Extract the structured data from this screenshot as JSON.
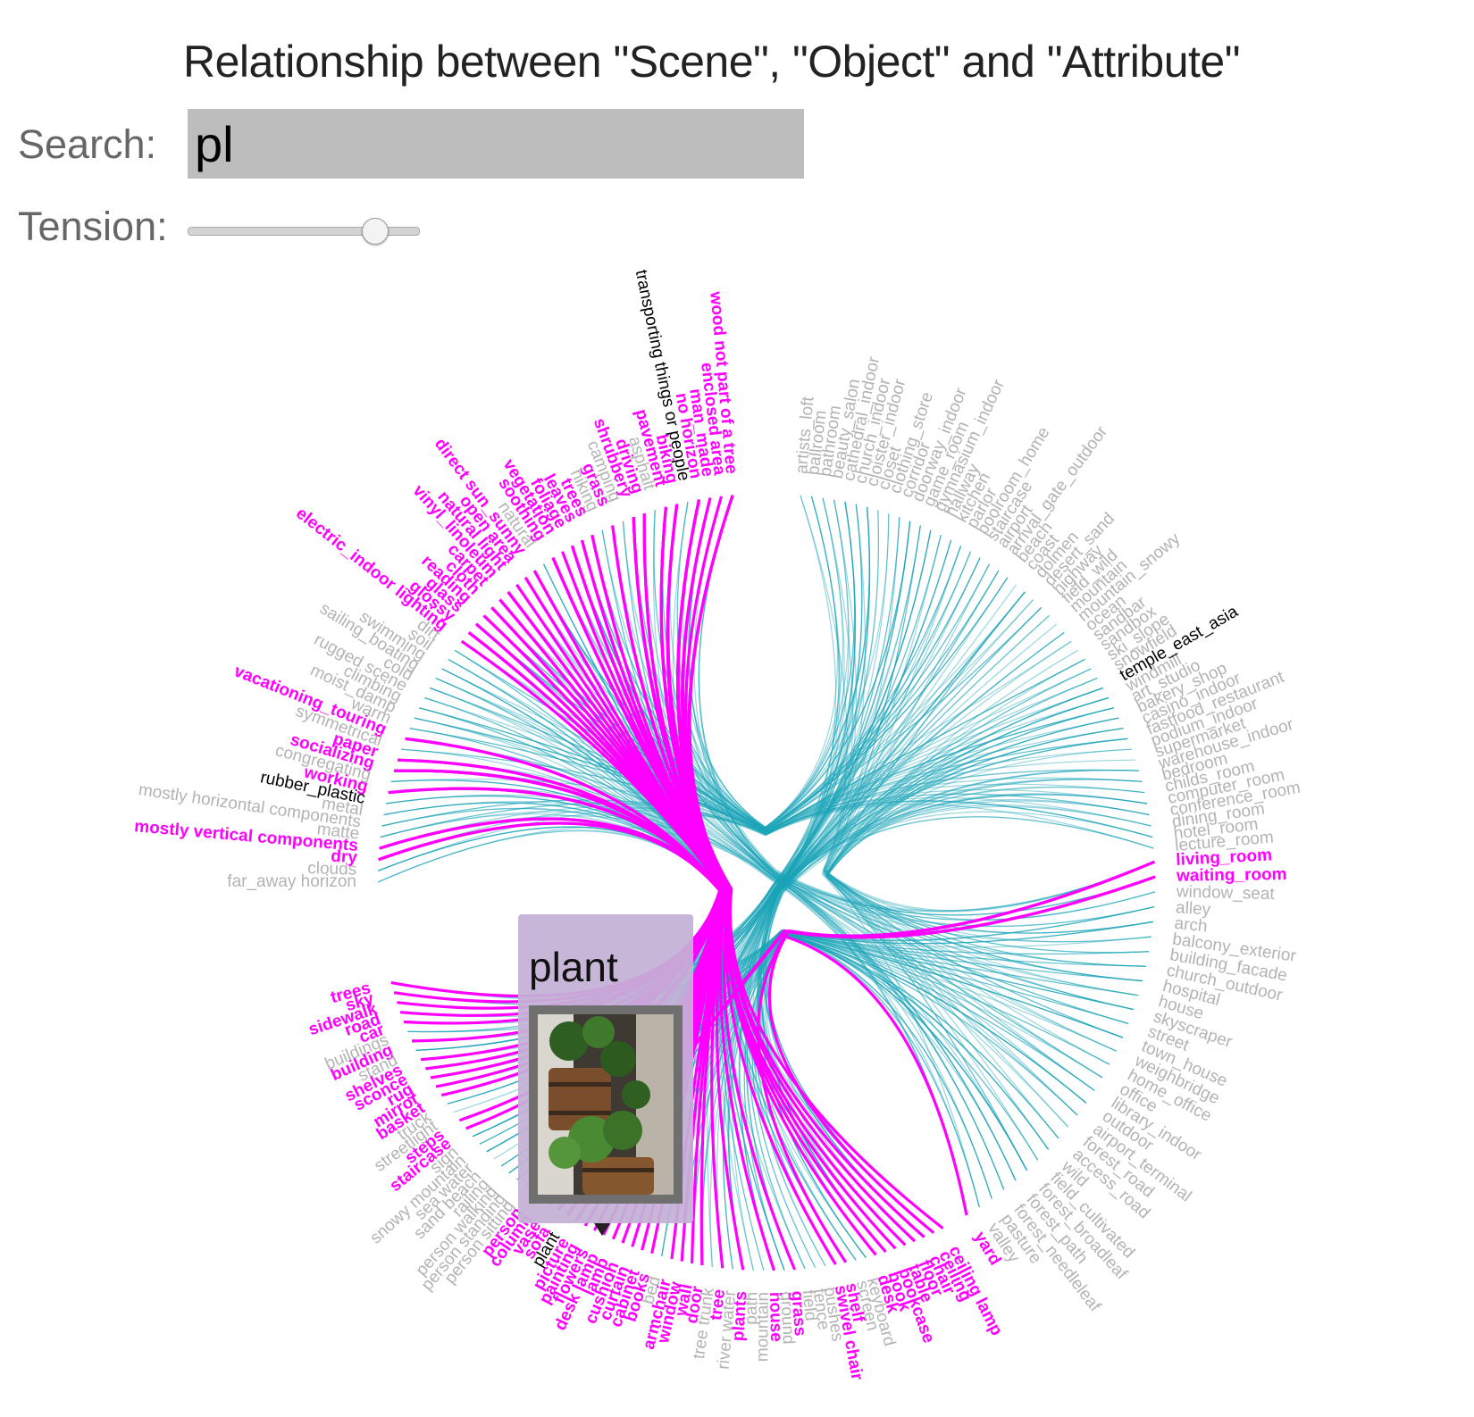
{
  "title": "Relationship between \"Scene\", \"Object\" and \"Attribute\"",
  "search": {
    "label": "Search:",
    "value": "pl"
  },
  "tension": {
    "label": "Tension:",
    "value": 0.85
  },
  "tooltip": {
    "title": "plant"
  },
  "colors": {
    "highlight": "#ff00ff",
    "link": "#1aa3b8",
    "muted": "#b3b3b3",
    "selected": "#000000"
  },
  "groups": [
    {
      "name": "attributes",
      "nodes": [
        {
          "label": "wood not part of a tree",
          "state": "highlight"
        },
        {
          "label": "enclosed area",
          "state": "highlight"
        },
        {
          "label": "man_made",
          "state": "highlight"
        },
        {
          "label": "no horizon",
          "state": "highlight"
        },
        {
          "label": "transporting things or people",
          "state": "selected"
        },
        {
          "label": "biking",
          "state": "highlight"
        },
        {
          "label": "pavement",
          "state": "highlight"
        },
        {
          "label": "asphalt",
          "state": "muted"
        },
        {
          "label": "driving",
          "state": "highlight"
        },
        {
          "label": "shrubbery",
          "state": "highlight"
        },
        {
          "label": "camping",
          "state": "muted"
        },
        {
          "label": "grass",
          "state": "highlight"
        },
        {
          "label": "hiking",
          "state": "muted"
        },
        {
          "label": "trees",
          "state": "highlight"
        },
        {
          "label": "leaves",
          "state": "highlight"
        },
        {
          "label": "foliage",
          "state": "highlight"
        },
        {
          "label": "vegetation",
          "state": "highlight"
        },
        {
          "label": "soothing",
          "state": "highlight"
        },
        {
          "label": "natural",
          "state": "muted"
        },
        {
          "label": "direct sun_sunny",
          "state": "highlight"
        },
        {
          "label": "open area",
          "state": "highlight"
        },
        {
          "label": "natural light",
          "state": "highlight"
        },
        {
          "label": "vinyl_linoleum",
          "state": "highlight"
        },
        {
          "label": "carpet",
          "state": "highlight"
        },
        {
          "label": "cloth",
          "state": "highlight"
        },
        {
          "label": "reading",
          "state": "highlight"
        },
        {
          "label": "glass",
          "state": "highlight"
        },
        {
          "label": "glossy",
          "state": "highlight"
        },
        {
          "label": "electric_indoor lighting",
          "state": "highlight"
        },
        {
          "label": "dirt",
          "state": "muted"
        },
        {
          "label": "soil",
          "state": "muted"
        },
        {
          "label": "swimming",
          "state": "muted"
        },
        {
          "label": "sailing_boating",
          "state": "muted"
        },
        {
          "label": "cold",
          "state": "muted"
        },
        {
          "label": "rugged scene",
          "state": "muted"
        },
        {
          "label": "climbing",
          "state": "muted"
        },
        {
          "label": "moist_damp",
          "state": "muted"
        },
        {
          "label": "warm",
          "state": "muted"
        },
        {
          "label": "vacationing_touring",
          "state": "highlight"
        },
        {
          "label": "symmetrical",
          "state": "muted"
        },
        {
          "label": "paper",
          "state": "highlight"
        },
        {
          "label": "socializing",
          "state": "highlight"
        },
        {
          "label": "congregating",
          "state": "muted"
        },
        {
          "label": "working",
          "state": "highlight"
        },
        {
          "label": "rubber_plastic",
          "state": "selected"
        },
        {
          "label": "metal",
          "state": "muted"
        },
        {
          "label": "mostly horizontal components",
          "state": "muted"
        },
        {
          "label": "matte",
          "state": "muted"
        },
        {
          "label": "mostly vertical components",
          "state": "highlight"
        },
        {
          "label": "dry",
          "state": "highlight"
        },
        {
          "label": "clouds",
          "state": "muted"
        },
        {
          "label": "far_away horizon",
          "state": "muted"
        }
      ]
    },
    {
      "name": "objects",
      "nodes": [
        {
          "label": "trees",
          "state": "highlight"
        },
        {
          "label": "sky",
          "state": "highlight"
        },
        {
          "label": "sidewalk",
          "state": "highlight"
        },
        {
          "label": "road",
          "state": "highlight"
        },
        {
          "label": "car",
          "state": "highlight"
        },
        {
          "label": "buildings",
          "state": "muted"
        },
        {
          "label": "building",
          "state": "highlight"
        },
        {
          "label": "stand",
          "state": "muted"
        },
        {
          "label": "shelves",
          "state": "highlight"
        },
        {
          "label": "sconce",
          "state": "highlight"
        },
        {
          "label": "rug",
          "state": "highlight"
        },
        {
          "label": "mirror",
          "state": "highlight"
        },
        {
          "label": "basket",
          "state": "highlight"
        },
        {
          "label": "truck",
          "state": "muted"
        },
        {
          "label": "streetlight",
          "state": "muted"
        },
        {
          "label": "steps",
          "state": "highlight"
        },
        {
          "label": "staircase",
          "state": "highlight"
        },
        {
          "label": "sign",
          "state": "muted"
        },
        {
          "label": "snowy mountain",
          "state": "muted"
        },
        {
          "label": "sea water",
          "state": "muted"
        },
        {
          "label": "sand beach",
          "state": "muted"
        },
        {
          "label": "railing",
          "state": "muted"
        },
        {
          "label": "person walking",
          "state": "muted"
        },
        {
          "label": "person standing",
          "state": "muted"
        },
        {
          "label": "person sitting",
          "state": "muted"
        },
        {
          "label": "person",
          "state": "highlight"
        },
        {
          "label": "column",
          "state": "highlight"
        },
        {
          "label": "vase",
          "state": "highlight"
        },
        {
          "label": "sofa",
          "state": "highlight"
        },
        {
          "label": "plant",
          "state": "selected"
        },
        {
          "label": "picture",
          "state": "highlight"
        },
        {
          "label": "painting",
          "state": "highlight"
        },
        {
          "label": "flowers",
          "state": "highlight"
        },
        {
          "label": "desk lamp",
          "state": "highlight"
        },
        {
          "label": "lamp",
          "state": "highlight"
        },
        {
          "label": "cushion",
          "state": "highlight"
        },
        {
          "label": "curtain",
          "state": "highlight"
        },
        {
          "label": "cabinet",
          "state": "highlight"
        },
        {
          "label": "books",
          "state": "highlight"
        },
        {
          "label": "bed",
          "state": "muted"
        },
        {
          "label": "armchair",
          "state": "highlight"
        },
        {
          "label": "window",
          "state": "highlight"
        },
        {
          "label": "wall",
          "state": "highlight"
        },
        {
          "label": "door",
          "state": "highlight"
        },
        {
          "label": "tree trunk",
          "state": "muted"
        },
        {
          "label": "tree",
          "state": "highlight"
        },
        {
          "label": "river water",
          "state": "muted"
        },
        {
          "label": "plants",
          "state": "highlight"
        },
        {
          "label": "path",
          "state": "muted"
        },
        {
          "label": "mountain",
          "state": "muted"
        },
        {
          "label": "house",
          "state": "highlight"
        },
        {
          "label": "ground",
          "state": "muted"
        },
        {
          "label": "grass",
          "state": "highlight"
        },
        {
          "label": "field",
          "state": "muted"
        },
        {
          "label": "fence",
          "state": "muted"
        },
        {
          "label": "bushes",
          "state": "muted"
        },
        {
          "label": "swivel chair",
          "state": "highlight"
        },
        {
          "label": "shelf",
          "state": "highlight"
        },
        {
          "label": "screen",
          "state": "muted"
        },
        {
          "label": "keyboard",
          "state": "muted"
        },
        {
          "label": "desk",
          "state": "highlight"
        },
        {
          "label": "book",
          "state": "highlight"
        },
        {
          "label": "bookcase",
          "state": "highlight"
        },
        {
          "label": "table",
          "state": "highlight"
        },
        {
          "label": "floor",
          "state": "highlight"
        },
        {
          "label": "chair",
          "state": "highlight"
        },
        {
          "label": "ceiling",
          "state": "highlight"
        },
        {
          "label": "ceiling lamp",
          "state": "highlight"
        }
      ]
    },
    {
      "name": "scenes",
      "nodes": [
        {
          "label": "yard",
          "state": "highlight"
        },
        {
          "label": "valley",
          "state": "muted"
        },
        {
          "label": "pasture",
          "state": "muted"
        },
        {
          "label": "forest_needleleaf",
          "state": "muted"
        },
        {
          "label": "forest_path",
          "state": "muted"
        },
        {
          "label": "forest_broadleaf",
          "state": "muted"
        },
        {
          "label": "field_cultivated",
          "state": "muted"
        },
        {
          "label": "wild",
          "state": "muted"
        },
        {
          "label": "access_road",
          "state": "muted"
        },
        {
          "label": "forest_road",
          "state": "muted"
        },
        {
          "label": "airport_terminal",
          "state": "muted"
        },
        {
          "label": "outdoor",
          "state": "muted"
        },
        {
          "label": "library_indoor",
          "state": "muted"
        },
        {
          "label": "office",
          "state": "muted"
        },
        {
          "label": "home_office",
          "state": "muted"
        },
        {
          "label": "weighbridge",
          "state": "muted"
        },
        {
          "label": "town_house",
          "state": "muted"
        },
        {
          "label": "street",
          "state": "muted"
        },
        {
          "label": "skyscraper",
          "state": "muted"
        },
        {
          "label": "house",
          "state": "muted"
        },
        {
          "label": "hospital",
          "state": "muted"
        },
        {
          "label": "church_outdoor",
          "state": "muted"
        },
        {
          "label": "building_facade",
          "state": "muted"
        },
        {
          "label": "balcony_exterior",
          "state": "muted"
        },
        {
          "label": "arch",
          "state": "muted"
        },
        {
          "label": "alley",
          "state": "muted"
        },
        {
          "label": "window_seat",
          "state": "muted"
        },
        {
          "label": "waiting_room",
          "state": "highlight"
        },
        {
          "label": "living_room",
          "state": "highlight"
        },
        {
          "label": "lecture_room",
          "state": "muted"
        },
        {
          "label": "hotel_room",
          "state": "muted"
        },
        {
          "label": "dining_room",
          "state": "muted"
        },
        {
          "label": "conference_room",
          "state": "muted"
        },
        {
          "label": "computer_room",
          "state": "muted"
        },
        {
          "label": "childs_room",
          "state": "muted"
        },
        {
          "label": "bedroom",
          "state": "muted"
        },
        {
          "label": "warehouse_indoor",
          "state": "muted"
        },
        {
          "label": "supermarket",
          "state": "muted"
        },
        {
          "label": "podium_indoor",
          "state": "muted"
        },
        {
          "label": "fastfood_restaurant",
          "state": "muted"
        },
        {
          "label": "casino_indoor",
          "state": "muted"
        },
        {
          "label": "bakery_shop",
          "state": "muted"
        },
        {
          "label": "art_studio",
          "state": "muted"
        },
        {
          "label": "windmill",
          "state": "muted"
        },
        {
          "label": "temple_east_asia",
          "state": "selected"
        },
        {
          "label": "snowfield",
          "state": "muted"
        },
        {
          "label": "ski_slope",
          "state": "muted"
        },
        {
          "label": "sandbox",
          "state": "muted"
        },
        {
          "label": "sandbar",
          "state": "muted"
        },
        {
          "label": "ocean",
          "state": "muted"
        },
        {
          "label": "mountain_snowy",
          "state": "muted"
        },
        {
          "label": "mountain",
          "state": "muted"
        },
        {
          "label": "field_wild",
          "state": "muted"
        },
        {
          "label": "highway",
          "state": "muted"
        },
        {
          "label": "desert_sand",
          "state": "muted"
        },
        {
          "label": "dolmen",
          "state": "muted"
        },
        {
          "label": "coast",
          "state": "muted"
        },
        {
          "label": "beach",
          "state": "muted"
        },
        {
          "label": "arrival_gate_outdoor",
          "state": "muted"
        },
        {
          "label": "airport",
          "state": "muted"
        },
        {
          "label": "staircase",
          "state": "muted"
        },
        {
          "label": "poolroom_home",
          "state": "muted"
        },
        {
          "label": "parlor",
          "state": "muted"
        },
        {
          "label": "kitchen",
          "state": "muted"
        },
        {
          "label": "hallway",
          "state": "muted"
        },
        {
          "label": "gymnasium_indoor",
          "state": "muted"
        },
        {
          "label": "game_room",
          "state": "muted"
        },
        {
          "label": "doorway_indoor",
          "state": "muted"
        },
        {
          "label": "corridor",
          "state": "muted"
        },
        {
          "label": "clothing_store",
          "state": "muted"
        },
        {
          "label": "closet",
          "state": "muted"
        },
        {
          "label": "cloister_indoor",
          "state": "muted"
        },
        {
          "label": "church_indoor",
          "state": "muted"
        },
        {
          "label": "cathedral_indoor",
          "state": "muted"
        },
        {
          "label": "beauty_salon",
          "state": "muted"
        },
        {
          "label": "bathroom",
          "state": "muted"
        },
        {
          "label": "ballroom",
          "state": "muted"
        },
        {
          "label": "artists_loft",
          "state": "muted"
        }
      ]
    }
  ]
}
